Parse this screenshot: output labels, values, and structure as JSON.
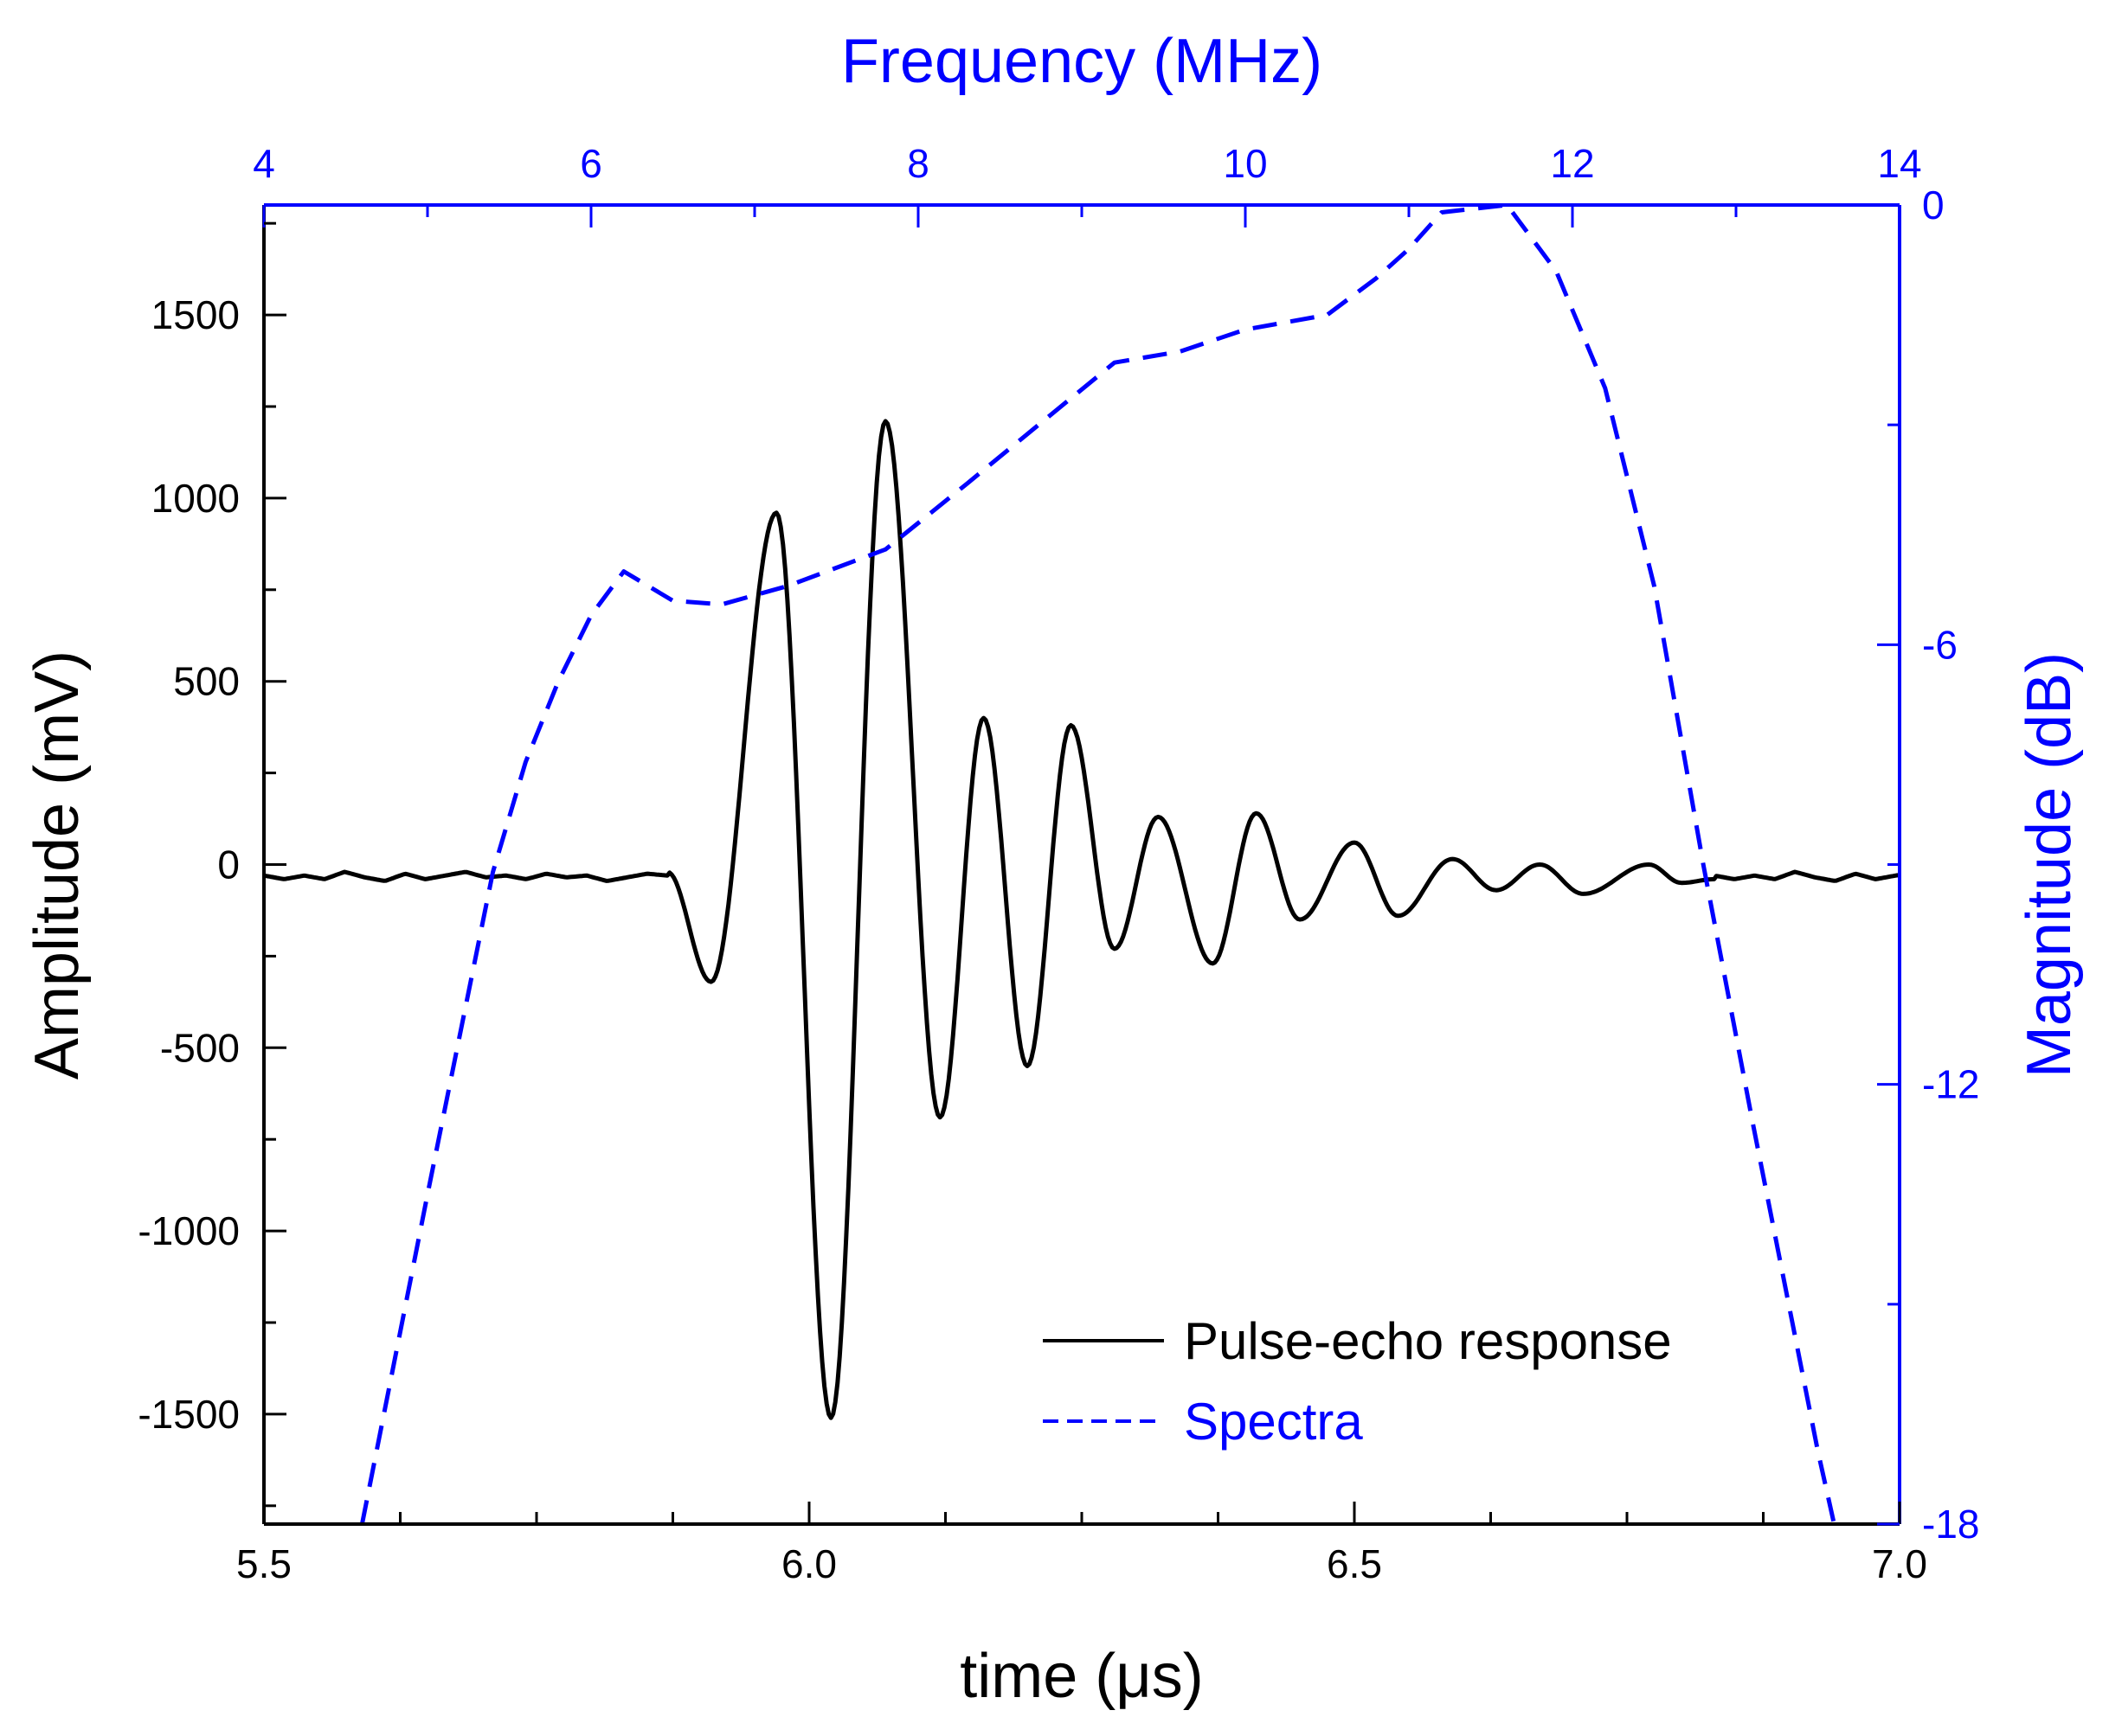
{
  "chart_data": {
    "type": "line",
    "colors": {
      "primary": "#000000",
      "secondary": "#0000ff"
    },
    "bottom_axis": {
      "label": "time (μs)",
      "range": [
        5.5,
        7.0
      ],
      "ticks": [
        "5.5",
        "6.0",
        "6.5",
        "7.0"
      ],
      "tick_values": [
        5.5,
        6.0,
        6.5,
        7.0
      ]
    },
    "top_axis": {
      "label": "Frequency (MHz)",
      "range": [
        4,
        14
      ],
      "ticks": [
        "4",
        "6",
        "8",
        "10",
        "12",
        "14"
      ],
      "tick_values": [
        4,
        6,
        8,
        10,
        12,
        14
      ]
    },
    "left_axis": {
      "label": "Amplitude (mV)",
      "range": [
        -1800,
        1800
      ],
      "ticks": [
        "1500",
        "1000",
        "500",
        "0",
        "-500",
        "-1000",
        "-1500"
      ],
      "tick_values": [
        1500,
        1000,
        500,
        0,
        -500,
        -1000,
        -1500
      ]
    },
    "right_axis": {
      "label": "Magnitude (dB)",
      "range": [
        -18,
        0
      ],
      "ticks": [
        "0",
        "-6",
        "-12",
        "-18"
      ],
      "tick_values": [
        0,
        -6,
        -12,
        -18
      ]
    },
    "legend": {
      "placement": "bottom-right",
      "entries": [
        {
          "name": "Pulse-echo response",
          "style": "solid",
          "color": "#000000"
        },
        {
          "name": "Spectra",
          "style": "dashed",
          "color": "#0000ff"
        }
      ]
    },
    "series": [
      {
        "name": "Pulse-echo response",
        "axes": [
          "bottom",
          "left"
        ],
        "x_range": [
          5.5,
          7.0
        ],
        "baseline_ripple": [
          -30,
          -40,
          -30,
          -40,
          -20,
          -35,
          -45,
          -25,
          -40,
          -30,
          -20,
          -35,
          -30,
          -40,
          -25,
          -35,
          -30,
          -45,
          -35,
          -25
        ],
        "damped_oscillation": [
          {
            "x": 5.87,
            "y": -20
          },
          {
            "x": 5.91,
            "y": -320
          },
          {
            "x": 5.97,
            "y": 960
          },
          {
            "x": 6.02,
            "y": -1510
          },
          {
            "x": 6.07,
            "y": 1210
          },
          {
            "x": 6.12,
            "y": -690
          },
          {
            "x": 6.16,
            "y": 400
          },
          {
            "x": 6.2,
            "y": -550
          },
          {
            "x": 6.24,
            "y": 380
          },
          {
            "x": 6.28,
            "y": -230
          },
          {
            "x": 6.32,
            "y": 130
          },
          {
            "x": 6.37,
            "y": -270
          },
          {
            "x": 6.41,
            "y": 140
          },
          {
            "x": 6.45,
            "y": -150
          },
          {
            "x": 6.5,
            "y": 60
          },
          {
            "x": 6.54,
            "y": -140
          },
          {
            "x": 6.59,
            "y": 15
          },
          {
            "x": 6.63,
            "y": -70
          },
          {
            "x": 6.67,
            "y": 0
          },
          {
            "x": 6.71,
            "y": -80
          },
          {
            "x": 6.77,
            "y": 0
          },
          {
            "x": 6.8,
            "y": -50
          },
          {
            "x": 6.83,
            "y": -40
          }
        ]
      },
      {
        "name": "Spectra",
        "axes": [
          "top",
          "right"
        ],
        "x": [
          4.6,
          5.0,
          5.4,
          5.6,
          5.8,
          6.0,
          6.2,
          6.5,
          6.8,
          7.2,
          7.8,
          8.3,
          8.9,
          9.2,
          9.6,
          10.0,
          10.5,
          10.8,
          11.0,
          11.2,
          11.6,
          11.9,
          12.2,
          12.5,
          12.8,
          13.1,
          13.5,
          13.6
        ],
        "y": [
          -18.0,
          -13.5,
          -9.1,
          -7.6,
          -6.5,
          -5.6,
          -5.0,
          -5.4,
          -5.45,
          -5.2,
          -4.7,
          -3.8,
          -2.7,
          -2.15,
          -2.0,
          -1.7,
          -1.5,
          -1.0,
          -0.6,
          -0.1,
          0.0,
          -0.9,
          -2.5,
          -5.2,
          -9.0,
          -12.5,
          -17.0,
          -18.0
        ]
      }
    ]
  }
}
